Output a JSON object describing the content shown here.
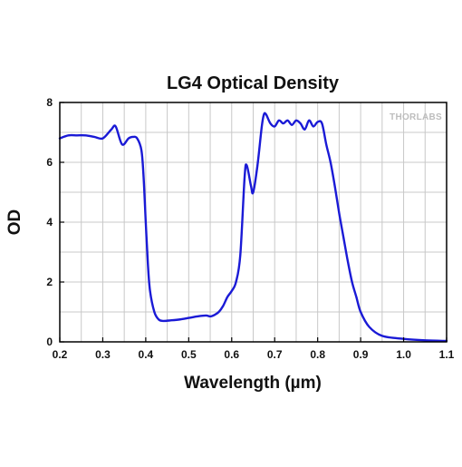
{
  "chart_data": {
    "type": "line",
    "title": "LG4 Optical Density",
    "xlabel": "Wavelength (µm)",
    "ylabel": "OD",
    "xlim": [
      0.2,
      1.1
    ],
    "ylim": [
      0,
      8
    ],
    "xticks": [
      "0.2",
      "0.3",
      "0.4",
      "0.5",
      "0.6",
      "0.7",
      "0.8",
      "0.9",
      "1.0",
      "1.1"
    ],
    "yticks": [
      "0",
      "2",
      "4",
      "6",
      "8"
    ],
    "grid": true,
    "watermark": "THORLABS",
    "series": [
      {
        "color": "#1a1ad6",
        "x": [
          0.2,
          0.22,
          0.24,
          0.26,
          0.28,
          0.3,
          0.32,
          0.33,
          0.345,
          0.36,
          0.37,
          0.38,
          0.39,
          0.395,
          0.4,
          0.405,
          0.41,
          0.42,
          0.43,
          0.44,
          0.46,
          0.48,
          0.5,
          0.52,
          0.54,
          0.55,
          0.56,
          0.57,
          0.58,
          0.59,
          0.6,
          0.61,
          0.62,
          0.63,
          0.635,
          0.645,
          0.65,
          0.66,
          0.67,
          0.675,
          0.68,
          0.69,
          0.7,
          0.71,
          0.72,
          0.73,
          0.74,
          0.75,
          0.76,
          0.77,
          0.78,
          0.79,
          0.8,
          0.81,
          0.82,
          0.83,
          0.84,
          0.85,
          0.86,
          0.87,
          0.88,
          0.89,
          0.9,
          0.92,
          0.95,
          1.0,
          1.05,
          1.1
        ],
        "y": [
          6.8,
          6.9,
          6.9,
          6.9,
          6.85,
          6.8,
          7.1,
          7.2,
          6.6,
          6.8,
          6.85,
          6.8,
          6.4,
          5.5,
          4.0,
          2.6,
          1.7,
          1.0,
          0.75,
          0.7,
          0.72,
          0.75,
          0.8,
          0.85,
          0.88,
          0.85,
          0.9,
          1.0,
          1.2,
          1.5,
          1.7,
          2.0,
          2.9,
          5.5,
          5.9,
          5.2,
          5.0,
          5.9,
          7.2,
          7.6,
          7.6,
          7.3,
          7.2,
          7.4,
          7.3,
          7.4,
          7.25,
          7.4,
          7.3,
          7.1,
          7.4,
          7.2,
          7.35,
          7.3,
          6.6,
          6.0,
          5.2,
          4.3,
          3.5,
          2.7,
          2.0,
          1.5,
          1.0,
          0.5,
          0.2,
          0.1,
          0.05,
          0.03
        ]
      }
    ]
  }
}
